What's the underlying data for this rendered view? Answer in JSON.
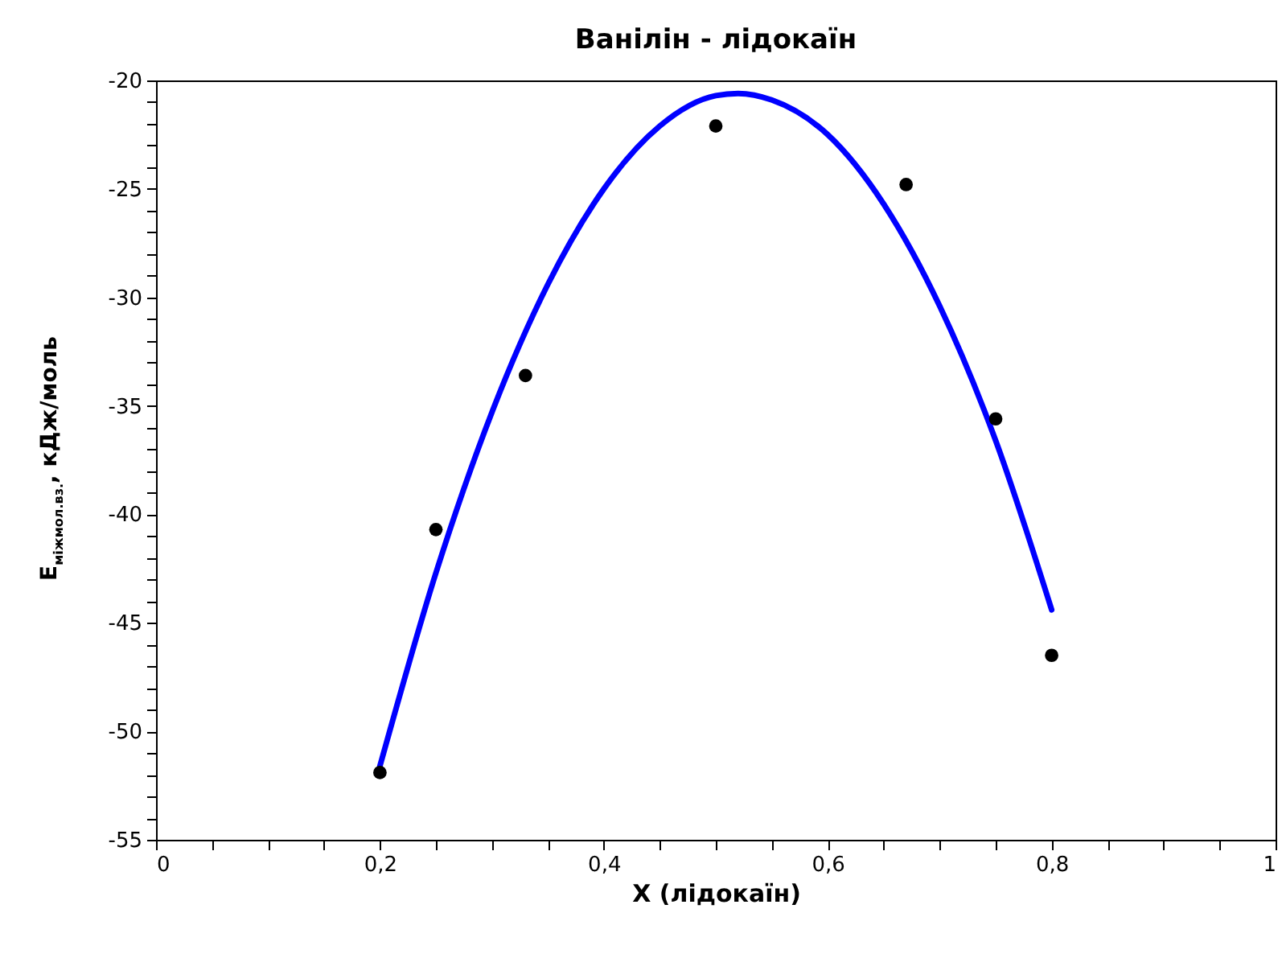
{
  "chart_data": {
    "type": "scatter",
    "title": "Ванілін - лідокаїн",
    "xlabel": "X (лідокаїн)",
    "ylabel": "E$_{міжмол.вз.}$, кДж/моль",
    "xlim": [
      0,
      1
    ],
    "ylim": [
      -55,
      -20
    ],
    "grid": false,
    "marker": "circle",
    "xticks": [
      0,
      {
        "value": 0.05,
        "label": null
      },
      {
        "value": 0.1,
        "label": null
      },
      {
        "value": 0.15,
        "label": null
      },
      {
        "value": 0.2,
        "label": "0,2"
      },
      {
        "value": 0.25,
        "label": null
      },
      {
        "value": 0.3,
        "label": null
      },
      {
        "value": 0.35,
        "label": null
      },
      {
        "value": 0.4,
        "label": "0,4"
      },
      {
        "value": 0.45,
        "label": null
      },
      {
        "value": 0.5,
        "label": null
      },
      {
        "value": 0.55,
        "label": null
      },
      {
        "value": 0.6,
        "label": "0,6"
      },
      {
        "value": 0.65,
        "label": null
      },
      {
        "value": 0.7,
        "label": null
      },
      {
        "value": 0.75,
        "label": null
      },
      {
        "value": 0.8,
        "label": "0,8"
      },
      {
        "value": 0.85,
        "label": null
      },
      {
        "value": 0.9,
        "label": null
      },
      {
        "value": 0.95,
        "label": null
      },
      1
    ],
    "yticks": [
      -55,
      {
        "value": -54,
        "label": null
      },
      {
        "value": -53,
        "label": null
      },
      {
        "value": -52,
        "label": null
      },
      {
        "value": -51,
        "label": null
      },
      -50,
      {
        "value": -49,
        "label": null
      },
      {
        "value": -48,
        "label": null
      },
      {
        "value": -47,
        "label": null
      },
      {
        "value": -46,
        "label": null
      },
      -45,
      {
        "value": -44,
        "label": null
      },
      {
        "value": -43,
        "label": null
      },
      {
        "value": -42,
        "label": null
      },
      {
        "value": -41,
        "label": null
      },
      -40,
      {
        "value": -39,
        "label": null
      },
      {
        "value": -38,
        "label": null
      },
      {
        "value": -37,
        "label": null
      },
      {
        "value": -36,
        "label": null
      },
      -35,
      {
        "value": -34,
        "label": null
      },
      {
        "value": -33,
        "label": null
      },
      {
        "value": -32,
        "label": null
      },
      {
        "value": -31,
        "label": null
      },
      -30,
      {
        "value": -29,
        "label": null
      },
      {
        "value": -28,
        "label": null
      },
      {
        "value": -27,
        "label": null
      },
      {
        "value": -26,
        "label": null
      },
      -25,
      {
        "value": -24,
        "label": null
      },
      {
        "value": -23,
        "label": null
      },
      {
        "value": -22,
        "label": null
      },
      {
        "value": -21,
        "label": null
      },
      -20
    ],
    "series": [
      {
        "type": "line",
        "color": "#0000ff",
        "marker": "none",
        "x": [
          0.2,
          0.25,
          0.3,
          0.35,
          0.4,
          0.45,
          0.5,
          0.52,
          0.55,
          0.6,
          0.65,
          0.7,
          0.75,
          0.8
        ],
        "values": [
          -51.6,
          -42.7,
          -35.3,
          -29.4,
          -25.0,
          -22.1,
          -20.7,
          -20.6,
          -20.9,
          -22.5,
          -25.7,
          -30.4,
          -36.6,
          -44.4
        ]
      },
      {
        "type": "scatter",
        "color": "#000000",
        "x": [
          0.2,
          0.25,
          0.33,
          0.5,
          0.67,
          0.75,
          0.8
        ],
        "values": [
          -51.9,
          -40.7,
          -33.6,
          -22.1,
          -24.8,
          -35.6,
          -46.5
        ]
      }
    ]
  }
}
